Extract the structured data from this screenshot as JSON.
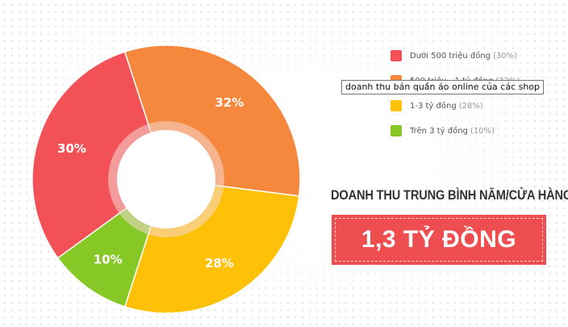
{
  "chart_data": {
    "type": "pie",
    "donut": true,
    "categories": [
      "Dưới 500 triệu đồng",
      "500 triệu - 1 tỷ đồng",
      "1-3 tỷ đồng",
      "Trên 3 tỷ đồng"
    ],
    "values": [
      30,
      32,
      28,
      10
    ],
    "value_labels": [
      "30%",
      "32%",
      "28%",
      "10%"
    ],
    "colors": [
      "#f25257",
      "#f6883d",
      "#ffc107",
      "#86c926"
    ],
    "legend_placement": "top-right",
    "legend": [
      {
        "label": "Dưới 500 triệu đồng",
        "pct": "(30%)",
        "color": "#f25257"
      },
      {
        "label": "500 triệu - 1 tỷ đồng",
        "pct": "(32%)",
        "color": "#f6883d"
      },
      {
        "label": "1-3 tỷ đồng",
        "pct": "(28%)",
        "color": "#ffc107"
      },
      {
        "label": "Trên 3 tỷ đồng",
        "pct": "(10%)",
        "color": "#86c926"
      }
    ]
  },
  "tooltip": {
    "text": "doanh thu bán quần áo online của các shop"
  },
  "summary": {
    "title": "DOANH THU TRUNG BÌNH NĂM/CỬA HÀNG",
    "value": "1,3 TỶ ĐỒNG"
  }
}
